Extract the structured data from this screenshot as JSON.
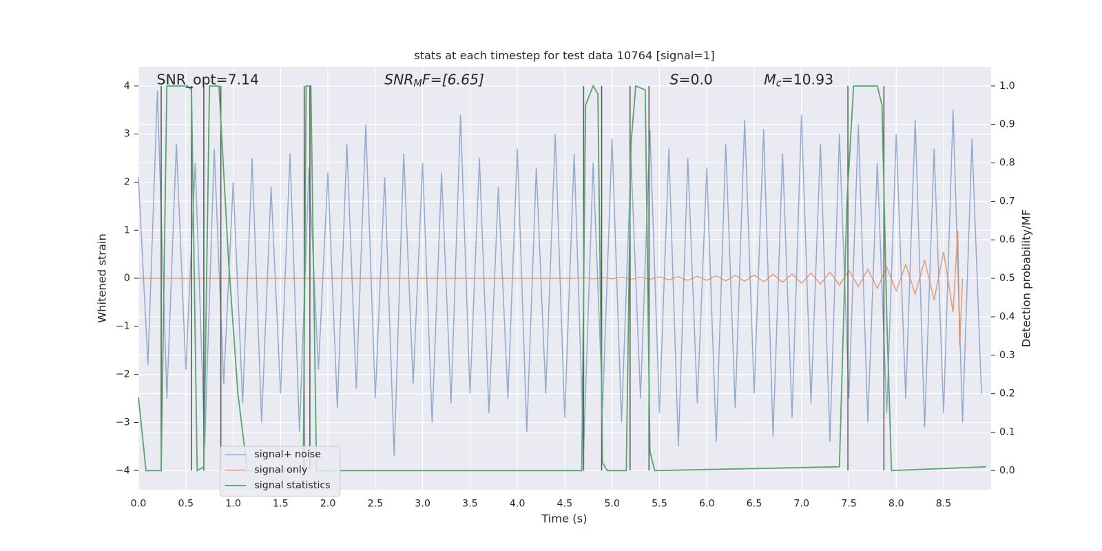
{
  "chart_data": {
    "type": "line",
    "title": "stats at each timestep for test data 10764 [signal=1]",
    "x_label": "Time (s)",
    "y_label": "Whitened strain",
    "y2_label": "Detection probability/MF",
    "annotations": [
      {
        "text": "SNR_opt=7.14"
      },
      {
        "text": "SNR",
        "sub": "M",
        "tail": "F=[6.65]"
      },
      {
        "text": "S",
        "tail": "=0.0"
      },
      {
        "text": "M",
        "sub": "c",
        "tail": "=10.93"
      }
    ],
    "xlim": [
      0,
      9.0
    ],
    "ylim": [
      -4.4,
      4.4
    ],
    "y2lim": [
      -0.05,
      1.05
    ],
    "xticks": [
      {
        "value": 0,
        "label": "0.0"
      },
      0.5,
      {
        "value": 1,
        "label": "1.0"
      },
      1.5,
      {
        "value": 2,
        "label": "2.0"
      },
      2.5,
      {
        "value": 3,
        "label": "3.0"
      },
      3.5,
      {
        "value": 4,
        "label": "4.0"
      },
      4.5,
      {
        "value": 5,
        "label": "5.0"
      },
      5.5,
      {
        "value": 6,
        "label": "6.0"
      },
      6.5,
      {
        "value": 7,
        "label": "7.0"
      },
      7.5,
      {
        "value": 8,
        "label": "8.0"
      },
      8.5
    ],
    "yticks": [
      {
        "value": -4,
        "label": "−4"
      },
      {
        "value": -3,
        "label": "−3"
      },
      {
        "value": -2,
        "label": "−2"
      },
      {
        "value": -1,
        "label": "−1"
      },
      0,
      1,
      2,
      3,
      4
    ],
    "y2ticks": [
      {
        "value": 0,
        "label": "0.0"
      },
      0.1,
      0.2,
      0.3,
      0.4,
      0.5,
      0.6,
      0.7,
      0.8,
      0.9,
      {
        "value": 1,
        "label": "1.0"
      }
    ],
    "grid": true,
    "legend": "lower left",
    "vlines": [
      0.24,
      0.56,
      0.69,
      0.87,
      1.75,
      1.81,
      4.7,
      4.89,
      5.19,
      5.39,
      7.49,
      7.87
    ],
    "vline_color": "#555555",
    "series": [
      {
        "name": "signal+ noise",
        "color": "#4c72b0",
        "x": [
          0,
          0.1,
          0.2,
          0.3,
          0.4,
          0.5,
          0.6,
          0.7,
          0.8,
          0.9,
          1,
          1.1,
          1.2,
          1.3,
          1.4,
          1.5,
          1.6,
          1.7,
          1.8,
          1.9,
          2,
          2.1,
          2.2,
          2.3,
          2.4,
          2.5,
          2.6,
          2.7,
          2.8,
          2.9,
          3,
          3.1,
          3.2,
          3.3,
          3.4,
          3.5,
          3.6,
          3.7,
          3.8,
          3.9,
          4,
          4.1,
          4.2,
          4.3,
          4.4,
          4.5,
          4.6,
          4.7,
          4.8,
          4.9,
          5,
          5.1,
          5.2,
          5.3,
          5.4,
          5.5,
          5.6,
          5.7,
          5.8,
          5.9,
          6,
          6.1,
          6.2,
          6.3,
          6.4,
          6.5,
          6.6,
          6.7,
          6.8,
          6.9,
          7,
          7.1,
          7.2,
          7.3,
          7.4,
          7.5,
          7.6,
          7.7,
          7.8,
          7.9,
          8,
          8.1,
          8.2,
          8.3,
          8.4,
          8.5,
          8.6,
          8.7,
          8.8,
          8.9
        ],
        "values": [
          2.1,
          -1.8,
          3.9,
          -2.5,
          2.8,
          -1.9,
          2.4,
          -3.5,
          2.7,
          -2.2,
          2.0,
          -2.6,
          2.5,
          -3.0,
          1.9,
          -2.4,
          2.6,
          -3.2,
          2.3,
          -1.9,
          2.2,
          -2.7,
          2.8,
          -2.3,
          3.2,
          -2.5,
          2.1,
          -3.7,
          2.6,
          -2.2,
          2.4,
          -3.0,
          2.2,
          -2.6,
          3.4,
          -2.4,
          2.5,
          -2.8,
          1.9,
          -2.5,
          2.7,
          -3.2,
          2.3,
          -2.4,
          3.0,
          -2.9,
          2.6,
          -3.6,
          2.4,
          -2.7,
          2.9,
          -3.0,
          2.5,
          -2.5,
          3.1,
          -2.8,
          2.7,
          -3.5,
          2.5,
          -2.6,
          2.3,
          -3.4,
          2.8,
          -2.7,
          3.3,
          -2.4,
          3.1,
          -3.3,
          2.6,
          -2.9,
          3.4,
          -2.6,
          2.8,
          -3.4,
          3.0,
          -2.5,
          3.2,
          -3.0,
          2.4,
          -2.8,
          3.0,
          -2.5,
          3.3,
          -3.1,
          2.7,
          -2.8,
          3.5,
          -3.0,
          2.9,
          -2.4
        ]
      },
      {
        "name": "signal only",
        "color": "#dd8452",
        "x": [
          0,
          4.6,
          4.7,
          4.8,
          4.9,
          5,
          5.1,
          5.2,
          5.3,
          5.4,
          5.5,
          5.6,
          5.7,
          5.8,
          5.9,
          6,
          6.1,
          6.2,
          6.3,
          6.4,
          6.5,
          6.6,
          6.7,
          6.8,
          6.9,
          7,
          7.1,
          7.2,
          7.3,
          7.4,
          7.5,
          7.6,
          7.7,
          7.8,
          7.9,
          8,
          8.1,
          8.2,
          8.3,
          8.4,
          8.5,
          8.6,
          8.65,
          8.67,
          8.7
        ],
        "values": [
          0,
          0,
          0.01,
          -0.01,
          0.01,
          -0.01,
          0.02,
          -0.02,
          0.02,
          -0.02,
          0.03,
          -0.03,
          0.03,
          -0.04,
          0.04,
          -0.04,
          0.05,
          -0.05,
          0.06,
          -0.06,
          0.07,
          -0.07,
          0.08,
          -0.08,
          0.09,
          -0.1,
          0.11,
          -0.12,
          0.13,
          -0.14,
          0.16,
          -0.17,
          0.19,
          -0.21,
          0.23,
          -0.26,
          0.29,
          -0.33,
          0.38,
          -0.45,
          0.55,
          -0.7,
          1.0,
          -1.4,
          0
        ]
      },
      {
        "name": "signal statistics",
        "color": "#55a868",
        "axis": "y2",
        "x": [
          0,
          0.08,
          0.24,
          0.3,
          0.52,
          0.56,
          0.62,
          0.69,
          0.75,
          0.85,
          0.95,
          1.05,
          1.15,
          1.74,
          1.77,
          1.82,
          1.88,
          4.68,
          4.72,
          4.8,
          4.85,
          4.9,
          4.95,
          5.0,
          5.15,
          5.2,
          5.25,
          5.35,
          5.4,
          5.45,
          7.4,
          7.48,
          7.55,
          7.8,
          7.85,
          7.9,
          7.95,
          8.95
        ],
        "values": [
          0.19,
          0,
          0,
          1,
          1,
          0.99,
          0,
          0.01,
          1,
          1,
          0.55,
          0.2,
          0,
          0,
          1,
          1,
          0,
          0,
          0.95,
          1,
          0.98,
          0.02,
          0,
          0,
          0,
          0.85,
          1,
          0.99,
          0.05,
          0,
          0.01,
          0.7,
          1,
          1,
          0.95,
          0.4,
          0,
          0.01
        ]
      }
    ]
  }
}
